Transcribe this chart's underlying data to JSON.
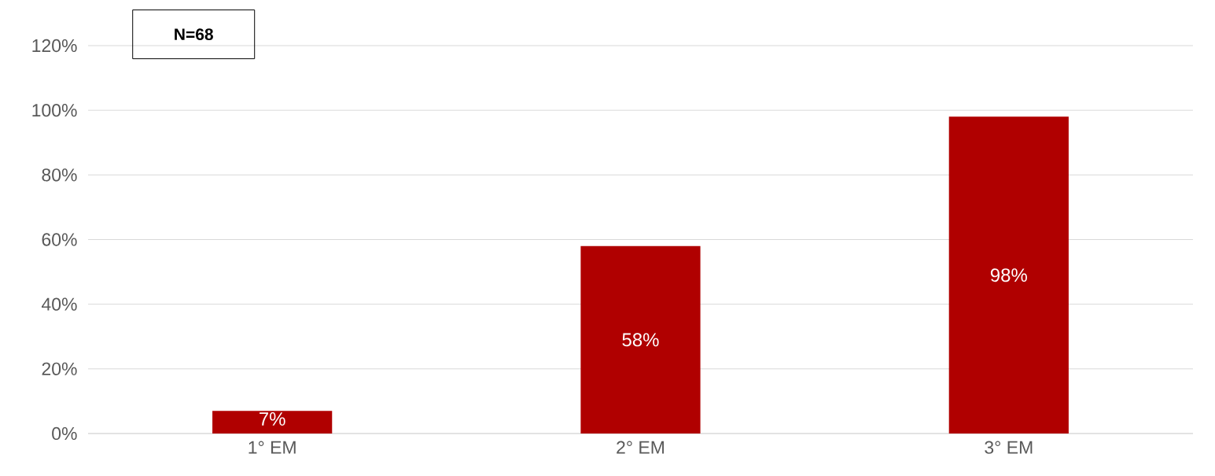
{
  "chart_data": {
    "type": "bar",
    "categories": [
      "1° EM",
      "2° EM",
      "3° EM"
    ],
    "values": [
      7,
      58,
      98
    ],
    "value_labels": [
      "7%",
      "58%",
      "98%"
    ],
    "color": "#b00000",
    "ylim": [
      0,
      120
    ],
    "yticks": [
      {
        "value": 0,
        "label": "0%"
      },
      {
        "value": 20,
        "label": "20%"
      },
      {
        "value": 40,
        "label": "40%"
      },
      {
        "value": 60,
        "label": "60%"
      },
      {
        "value": 80,
        "label": "80%"
      },
      {
        "value": 100,
        "label": "100%"
      },
      {
        "value": 120,
        "label": "120%"
      }
    ],
    "grid": "y",
    "annotations": [
      "N=68"
    ]
  }
}
